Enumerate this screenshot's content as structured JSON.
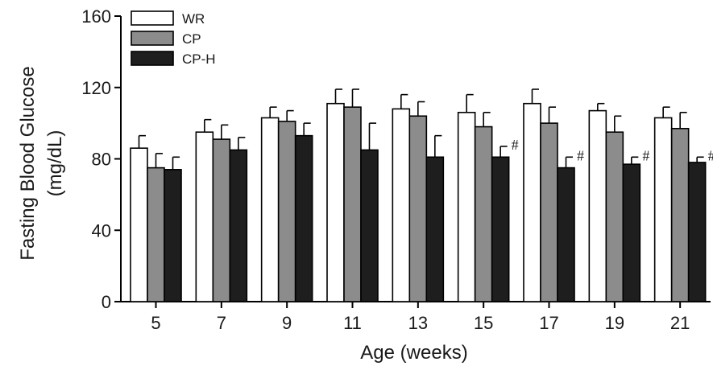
{
  "chart_data": {
    "type": "bar",
    "title": "",
    "xlabel": "Age (weeks)",
    "ylabel_line1": "Fasting Blood Glucose",
    "ylabel_line2": "(mg/dL)",
    "ylim": [
      0,
      160
    ],
    "yticks": [
      "0",
      "40",
      "80",
      "120",
      "160"
    ],
    "categories": [
      "5",
      "7",
      "9",
      "11",
      "13",
      "15",
      "17",
      "19",
      "21"
    ],
    "legend_position": "top-left",
    "significance_marker": "#",
    "series": [
      {
        "name": "WR",
        "color": "#ffffff",
        "values": [
          86,
          95,
          103,
          111,
          108,
          106,
          111,
          107,
          103
        ],
        "errors": [
          7,
          7,
          6,
          8,
          8,
          10,
          8,
          4,
          6
        ],
        "significant": [
          false,
          false,
          false,
          false,
          false,
          false,
          false,
          false,
          false
        ]
      },
      {
        "name": "CP",
        "color": "#8c8c8c",
        "values": [
          75,
          91,
          101,
          109,
          104,
          98,
          100,
          95,
          97
        ],
        "errors": [
          8,
          8,
          6,
          10,
          8,
          8,
          9,
          9,
          9
        ],
        "significant": [
          false,
          false,
          false,
          false,
          false,
          false,
          false,
          false,
          false
        ]
      },
      {
        "name": "CP-H",
        "color": "#1e1e1e",
        "values": [
          74,
          85,
          93,
          85,
          81,
          81,
          75,
          77,
          78
        ],
        "errors": [
          7,
          7,
          7,
          15,
          12,
          6,
          6,
          4,
          3
        ],
        "significant": [
          false,
          false,
          false,
          false,
          false,
          true,
          true,
          true,
          true
        ]
      }
    ]
  }
}
